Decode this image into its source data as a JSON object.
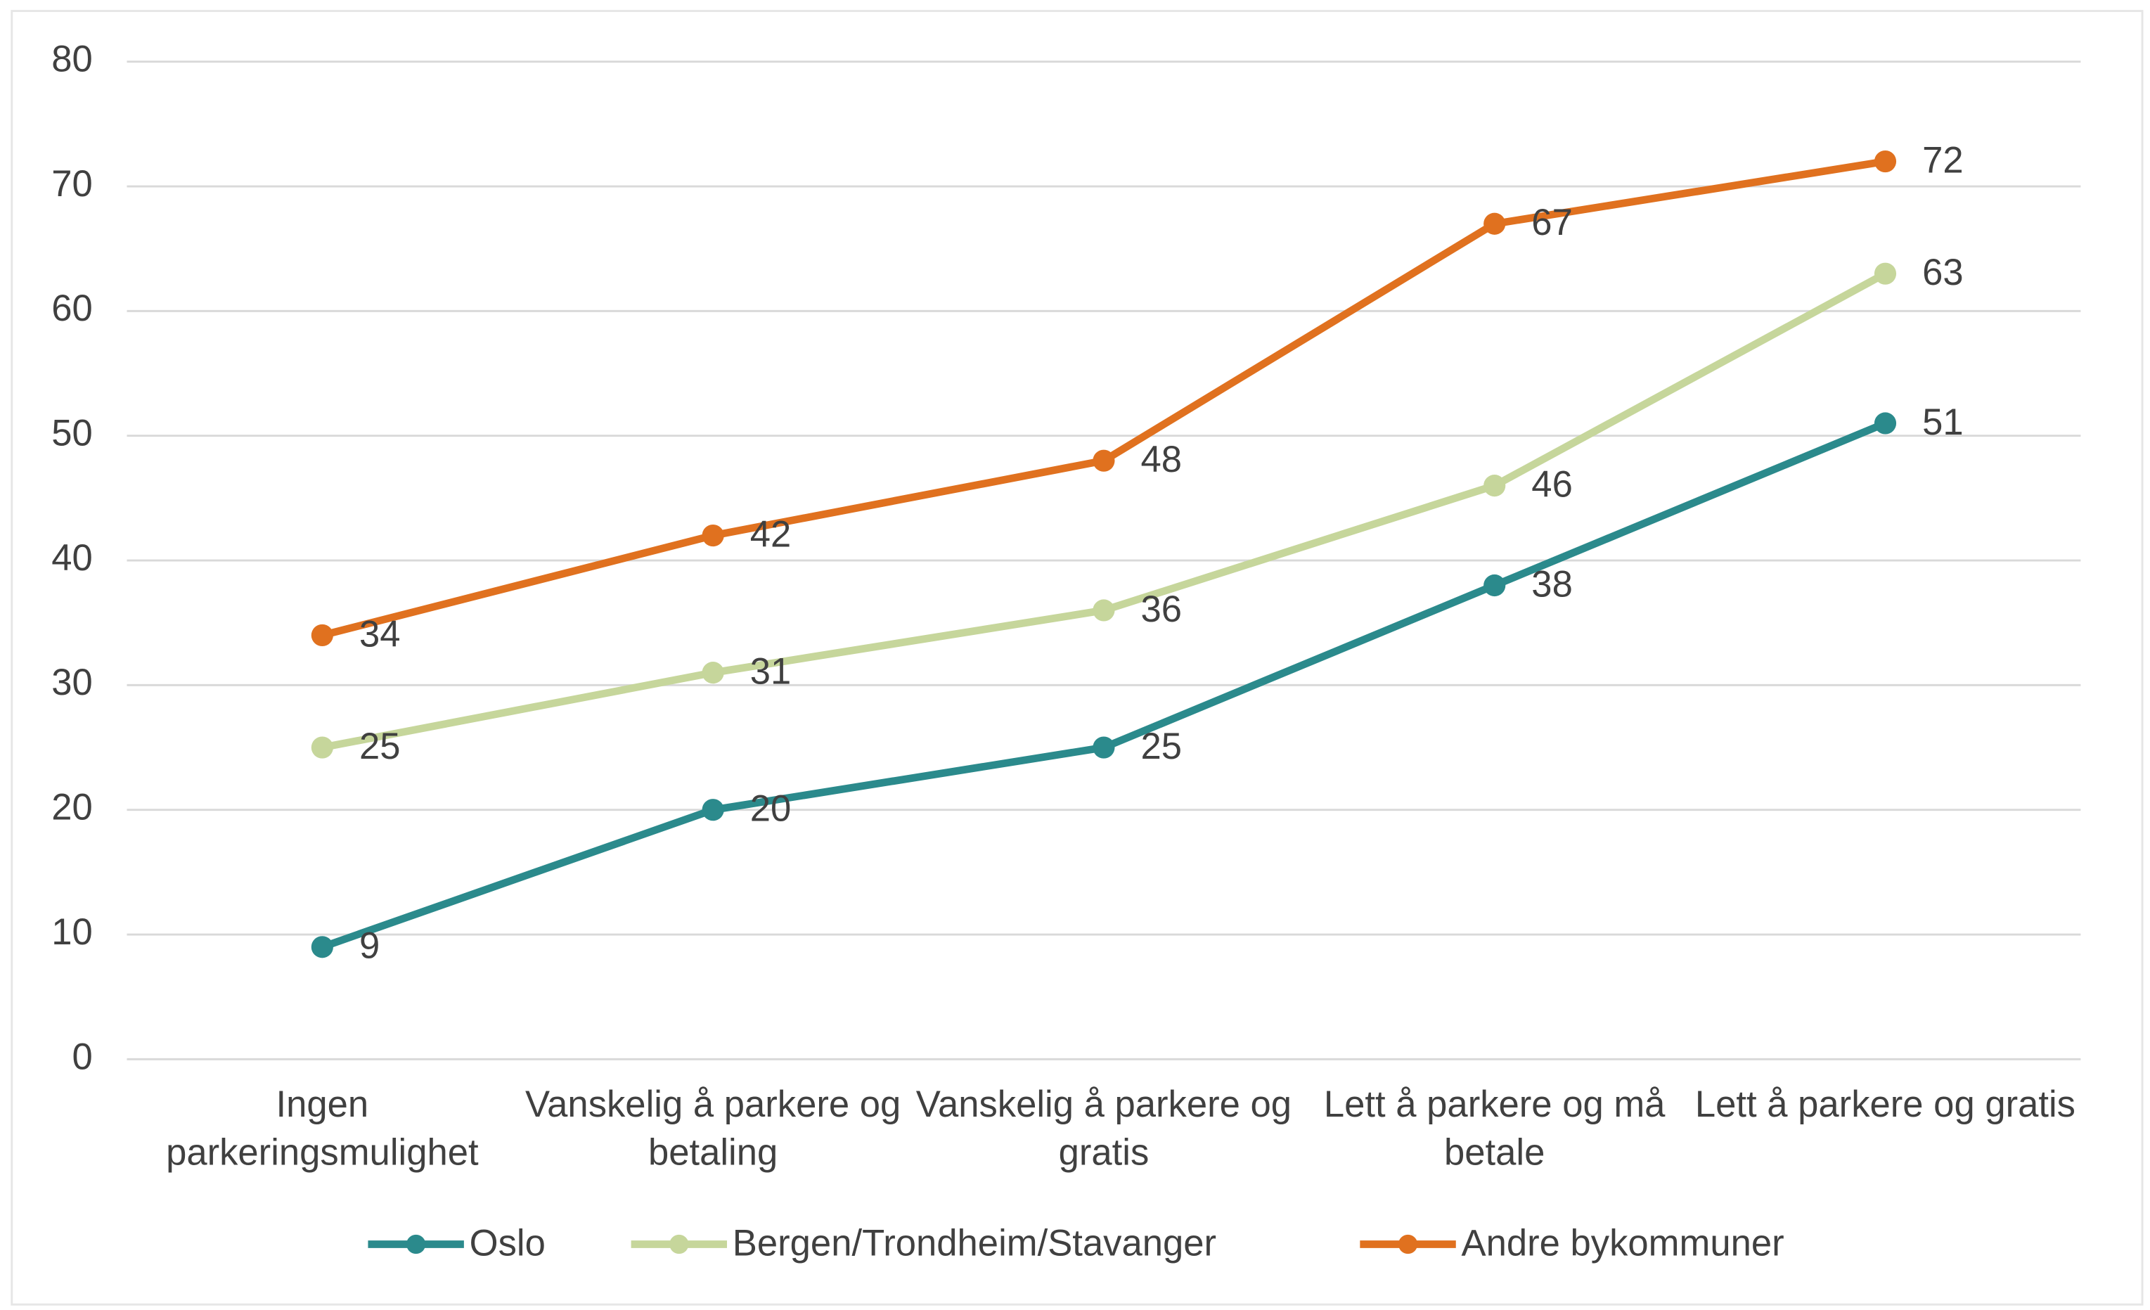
{
  "chart_data": {
    "type": "line",
    "categories": [
      "Ingen parkeringsmulighet",
      "Vanskelig å parkere og betaling",
      "Vanskelig å parkere og gratis",
      "Lett å parkere og må betale",
      "Lett å parkere og gratis"
    ],
    "series": [
      {
        "name": "Oslo",
        "color": "#2b8a8c",
        "values": [
          9,
          20,
          25,
          38,
          51
        ]
      },
      {
        "name": "Bergen/Trondheim/Stavanger",
        "color": "#c6d69b",
        "values": [
          25,
          31,
          36,
          46,
          63
        ]
      },
      {
        "name": "Andre bykommuner",
        "color": "#e0711f",
        "values": [
          34,
          42,
          48,
          67,
          72
        ]
      }
    ],
    "ylim": [
      0,
      80
    ],
    "yticks": [
      0,
      10,
      20,
      30,
      40,
      50,
      60,
      70,
      80
    ],
    "grid": true,
    "legend": "bottom"
  }
}
